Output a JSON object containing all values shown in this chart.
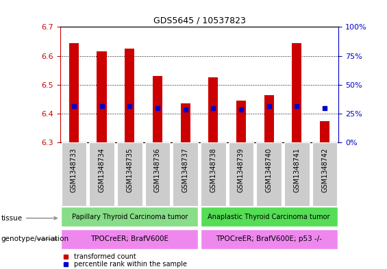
{
  "title": "GDS5645 / 10537823",
  "samples": [
    "GSM1348733",
    "GSM1348734",
    "GSM1348735",
    "GSM1348736",
    "GSM1348737",
    "GSM1348738",
    "GSM1348739",
    "GSM1348740",
    "GSM1348741",
    "GSM1348742"
  ],
  "transformed_count": [
    6.645,
    6.615,
    6.625,
    6.53,
    6.435,
    6.525,
    6.445,
    6.465,
    6.645,
    6.375
  ],
  "percentile_rank_y": [
    6.425,
    6.425,
    6.425,
    6.42,
    6.415,
    6.42,
    6.415,
    6.425,
    6.425,
    6.42
  ],
  "ylim_left": [
    6.3,
    6.7
  ],
  "ylim_right": [
    0,
    100
  ],
  "yticks_left": [
    6.3,
    6.4,
    6.5,
    6.6,
    6.7
  ],
  "yticks_right": [
    0,
    25,
    50,
    75,
    100
  ],
  "bar_color": "#cc0000",
  "dot_color": "#0000cc",
  "bar_width": 0.35,
  "tissue_labels": [
    "Papillary Thyroid Carcinoma tumor",
    "Anaplastic Thyroid Carcinoma tumor"
  ],
  "tissue_color": "#88dd88",
  "genotype_labels": [
    "TPOCreER; BrafV600E",
    "TPOCreER; BrafV600E; p53 -/-"
  ],
  "genotype_color": "#ee88ee",
  "left_axis_color": "#cc0000",
  "right_axis_color": "#0000cc",
  "grid_linestyle": ":",
  "xtick_bg_color": "#cccccc",
  "legend_tc": "transformed count",
  "legend_pr": "percentile rank within the sample",
  "tissue_row_label": "tissue",
  "geno_row_label": "genotype/variation"
}
